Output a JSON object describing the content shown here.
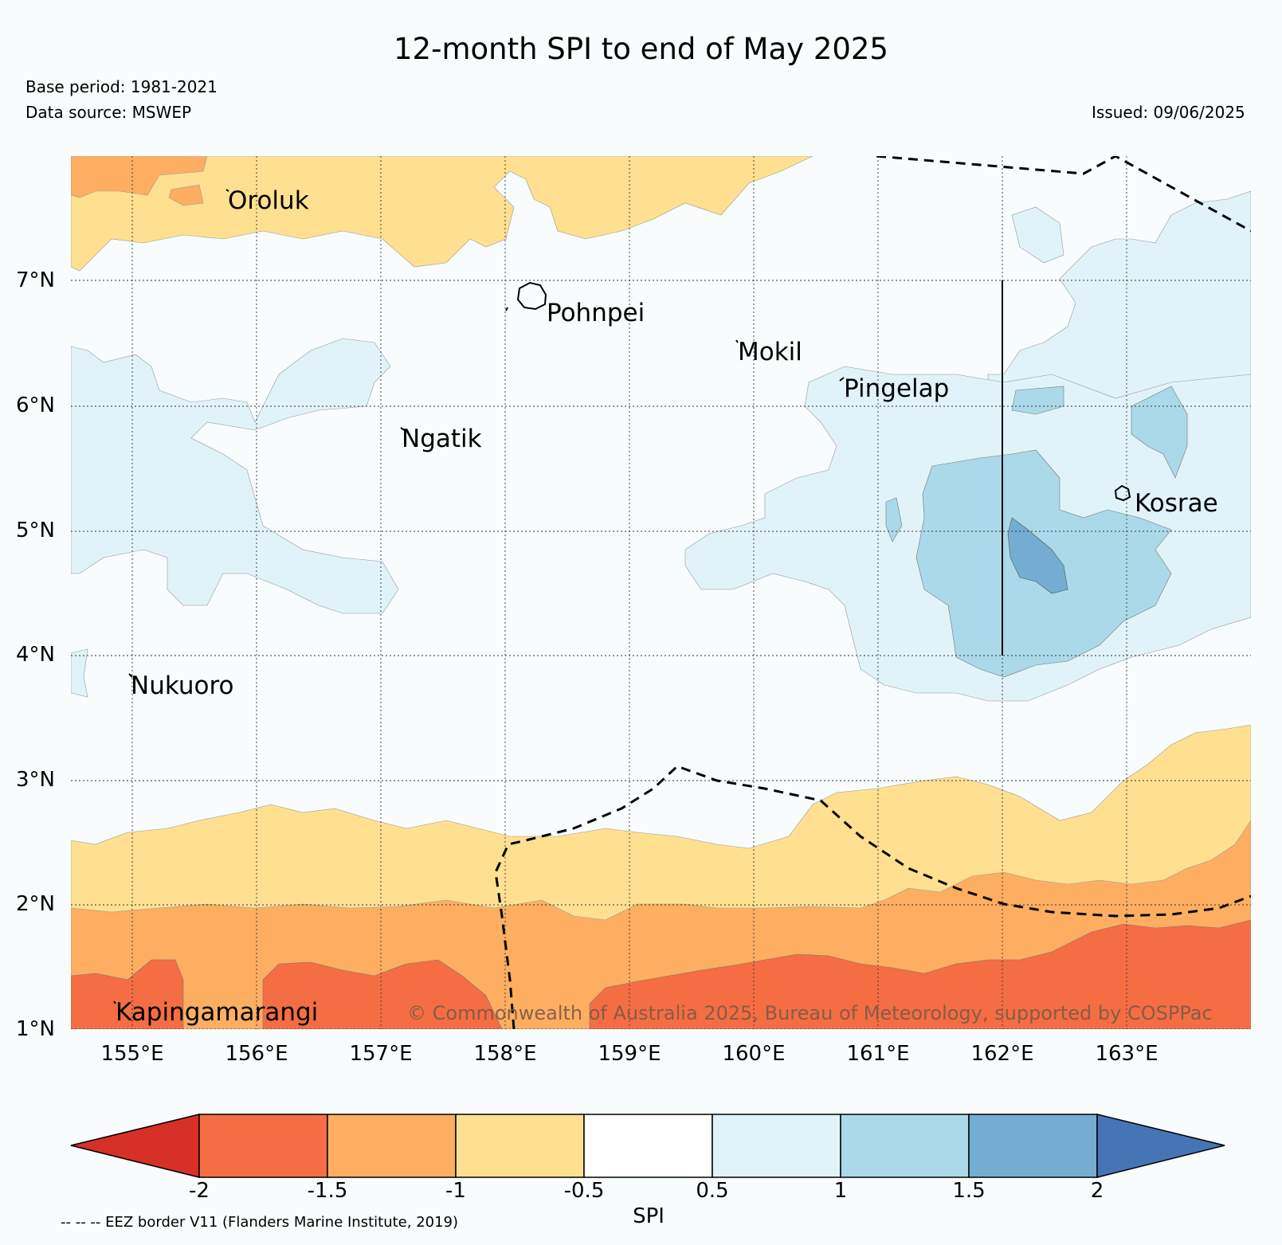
{
  "title": "12-month SPI to end of May 2025",
  "base_period": "Base period: 1981-2021",
  "data_source": "Data source: MSWEP",
  "issued": "Issued: 09/06/2025",
  "lat_labels": [
    "7°N",
    "6°N",
    "5°N",
    "4°N",
    "3°N",
    "2°N",
    "1°N"
  ],
  "lon_labels": [
    "155°E",
    "156°E",
    "157°E",
    "158°E",
    "159°E",
    "160°E",
    "161°E",
    "162°E",
    "163°E"
  ],
  "places": {
    "oroluk": "Oroluk",
    "pohnpei": "Pohnpei",
    "mokil": "Mokil",
    "pingelap": "Pingelap",
    "ngatik": "Ngatik",
    "kosrae": "Kosrae",
    "nukuoro": "Nukuoro",
    "kapingamarangi": "Kapingamarangi"
  },
  "copyright": "© Commonwealth of Australia 2025, Bureau of Meteorology, supported by COSPPac",
  "colorbar": {
    "label": "SPI",
    "ticks": [
      "-2",
      "-1.5",
      "-1",
      "-0.5",
      "0.5",
      "1",
      "1.5",
      "2"
    ],
    "colors": [
      "#d73027",
      "#f46d43",
      "#fdae61",
      "#fee090",
      "#ffffff",
      "#e0f3f8",
      "#abd9e9",
      "#74add1",
      "#4575b4"
    ]
  },
  "eez_note": "-- -- -- EEZ border V11 (Flanders Marine Institute, 2019)"
}
